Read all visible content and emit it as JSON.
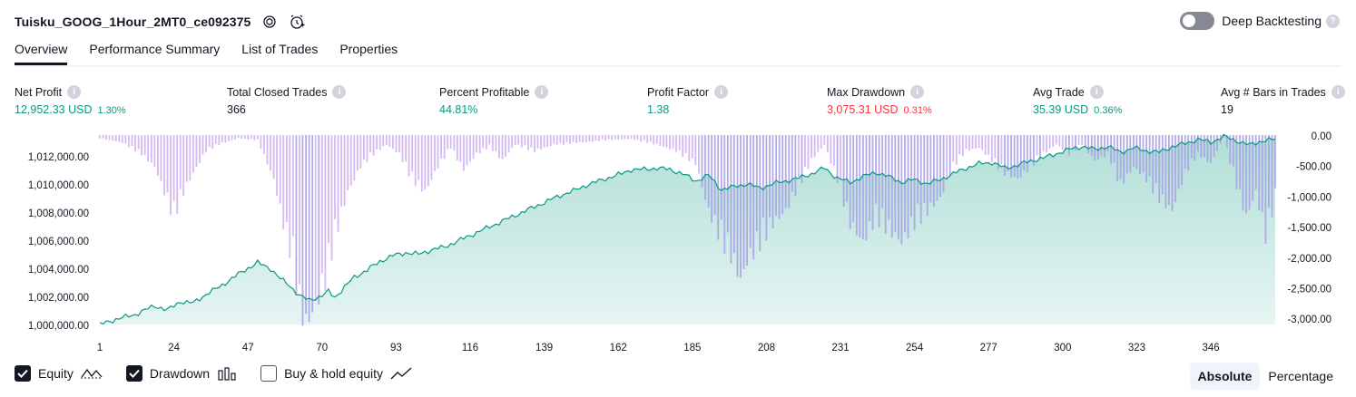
{
  "header": {
    "title": "Tuisku_GOOG_1Hour_2MT0_ce092375",
    "deep_backtesting_label": "Deep Backtesting",
    "help_glyph": "?"
  },
  "tabs": [
    {
      "label": "Overview",
      "active": true
    },
    {
      "label": "Performance Summary",
      "active": false
    },
    {
      "label": "List of Trades",
      "active": false
    },
    {
      "label": "Properties",
      "active": false
    }
  ],
  "stats": {
    "net_profit": {
      "label": "Net Profit",
      "value": "12,952.33 USD",
      "pct": "1.30%"
    },
    "total_closed_trades": {
      "label": "Total Closed Trades",
      "value": "366"
    },
    "percent_profitable": {
      "label": "Percent Profitable",
      "value": "44.81%"
    },
    "profit_factor": {
      "label": "Profit Factor",
      "value": "1.38"
    },
    "max_drawdown": {
      "label": "Max Drawdown",
      "value": "3,075.31 USD",
      "pct": "0.31%"
    },
    "avg_trade": {
      "label": "Avg Trade",
      "value": "35.39 USD",
      "pct": "0.36%"
    },
    "avg_bars": {
      "label": "Avg # Bars in Trades",
      "value": "19"
    }
  },
  "chart_data": {
    "type": "area",
    "equity_color": "#089981",
    "drawdown_color": "#c9a7ef",
    "left_axis": {
      "ticks": [
        "1,012,000.00",
        "1,010,000.00",
        "1,008,000.00",
        "1,006,000.00",
        "1,004,000.00",
        "1,002,000.00",
        "1,000,000.00"
      ],
      "range": [
        1000000,
        1013200
      ]
    },
    "right_axis": {
      "ticks": [
        "0.00",
        "-500.00",
        "-1,000.00",
        "-1,500.00",
        "-2,000.00",
        "-2,500.00",
        "-3,000.00"
      ],
      "range": [
        -3100,
        0
      ]
    },
    "x_ticks": [
      "1",
      "24",
      "47",
      "70",
      "93",
      "116",
      "139",
      "162",
      "185",
      "208",
      "231",
      "254",
      "277",
      "300",
      "323",
      "346"
    ],
    "trades": 366,
    "equity_points": [
      [
        1,
        1000000
      ],
      [
        5,
        1000300
      ],
      [
        12,
        1000700
      ],
      [
        18,
        1001300
      ],
      [
        22,
        1001000
      ],
      [
        26,
        1001600
      ],
      [
        30,
        1001500
      ],
      [
        34,
        1002100
      ],
      [
        38,
        1002600
      ],
      [
        42,
        1003200
      ],
      [
        46,
        1003800
      ],
      [
        50,
        1004300
      ],
      [
        54,
        1003900
      ],
      [
        57,
        1003200
      ],
      [
        60,
        1002700
      ],
      [
        63,
        1002000
      ],
      [
        66,
        1001700
      ],
      [
        70,
        1002000
      ],
      [
        72,
        1002300
      ],
      [
        74,
        1001900
      ],
      [
        77,
        1002600
      ],
      [
        80,
        1003300
      ],
      [
        84,
        1003800
      ],
      [
        88,
        1004400
      ],
      [
        92,
        1004800
      ],
      [
        96,
        1005000
      ],
      [
        100,
        1004900
      ],
      [
        104,
        1005200
      ],
      [
        108,
        1005400
      ],
      [
        112,
        1005800
      ],
      [
        116,
        1006200
      ],
      [
        120,
        1006600
      ],
      [
        124,
        1007000
      ],
      [
        128,
        1007400
      ],
      [
        132,
        1007800
      ],
      [
        136,
        1008200
      ],
      [
        140,
        1008600
      ],
      [
        144,
        1009000
      ],
      [
        148,
        1009300
      ],
      [
        152,
        1009700
      ],
      [
        156,
        1010000
      ],
      [
        160,
        1010300
      ],
      [
        163,
        1010500
      ],
      [
        166,
        1010800
      ],
      [
        170,
        1010800
      ],
      [
        174,
        1010900
      ],
      [
        178,
        1010800
      ],
      [
        182,
        1010500
      ],
      [
        186,
        1010000
      ],
      [
        190,
        1010400
      ],
      [
        194,
        1009400
      ],
      [
        198,
        1009600
      ],
      [
        202,
        1009800
      ],
      [
        206,
        1009500
      ],
      [
        210,
        1009800
      ],
      [
        214,
        1010000
      ],
      [
        218,
        1010200
      ],
      [
        222,
        1010500
      ],
      [
        226,
        1010900
      ],
      [
        230,
        1010200
      ],
      [
        234,
        1009900
      ],
      [
        238,
        1010300
      ],
      [
        242,
        1010600
      ],
      [
        246,
        1010300
      ],
      [
        250,
        1009900
      ],
      [
        254,
        1010100
      ],
      [
        258,
        1009800
      ],
      [
        262,
        1010100
      ],
      [
        266,
        1010500
      ],
      [
        270,
        1010900
      ],
      [
        274,
        1011200
      ],
      [
        278,
        1011300
      ],
      [
        282,
        1010900
      ],
      [
        286,
        1011100
      ],
      [
        290,
        1011400
      ],
      [
        294,
        1011600
      ],
      [
        298,
        1011900
      ],
      [
        302,
        1012200
      ],
      [
        306,
        1012400
      ],
      [
        310,
        1012200
      ],
      [
        314,
        1012400
      ],
      [
        318,
        1012000
      ],
      [
        322,
        1012300
      ],
      [
        326,
        1012100
      ],
      [
        330,
        1012000
      ],
      [
        334,
        1012400
      ],
      [
        338,
        1012600
      ],
      [
        342,
        1012900
      ],
      [
        346,
        1012700
      ],
      [
        350,
        1013100
      ],
      [
        354,
        1012800
      ],
      [
        358,
        1012500
      ],
      [
        362,
        1012800
      ],
      [
        366,
        1012900
      ]
    ],
    "drawdown_points": [
      [
        1,
        -50
      ],
      [
        8,
        -120
      ],
      [
        14,
        -300
      ],
      [
        18,
        -500
      ],
      [
        21,
        -900
      ],
      [
        24,
        -1300
      ],
      [
        26,
        -1000
      ],
      [
        30,
        -600
      ],
      [
        34,
        -250
      ],
      [
        38,
        -150
      ],
      [
        44,
        -50
      ],
      [
        50,
        -80
      ],
      [
        55,
        -700
      ],
      [
        58,
        -1400
      ],
      [
        61,
        -2000
      ],
      [
        63,
        -2700
      ],
      [
        65,
        -3000
      ],
      [
        68,
        -2700
      ],
      [
        71,
        -2300
      ],
      [
        74,
        -1600
      ],
      [
        78,
        -900
      ],
      [
        82,
        -500
      ],
      [
        86,
        -300
      ],
      [
        90,
        -150
      ],
      [
        94,
        -300
      ],
      [
        98,
        -700
      ],
      [
        102,
        -900
      ],
      [
        106,
        -500
      ],
      [
        110,
        -200
      ],
      [
        114,
        -550
      ],
      [
        118,
        -300
      ],
      [
        122,
        -180
      ],
      [
        126,
        -400
      ],
      [
        130,
        -150
      ],
      [
        136,
        -250
      ],
      [
        142,
        -150
      ],
      [
        150,
        -120
      ],
      [
        158,
        -80
      ],
      [
        166,
        -60
      ],
      [
        174,
        -150
      ],
      [
        180,
        -250
      ],
      [
        186,
        -450
      ],
      [
        190,
        -1200
      ],
      [
        194,
        -1650
      ],
      [
        197,
        -1900
      ],
      [
        200,
        -2300
      ],
      [
        202,
        -2000
      ],
      [
        206,
        -1700
      ],
      [
        210,
        -1400
      ],
      [
        214,
        -1200
      ],
      [
        218,
        -800
      ],
      [
        222,
        -400
      ],
      [
        226,
        -150
      ],
      [
        230,
        -700
      ],
      [
        234,
        -1400
      ],
      [
        238,
        -1700
      ],
      [
        242,
        -1300
      ],
      [
        246,
        -1500
      ],
      [
        250,
        -1700
      ],
      [
        254,
        -1400
      ],
      [
        258,
        -1200
      ],
      [
        262,
        -1000
      ],
      [
        266,
        -500
      ],
      [
        270,
        -250
      ],
      [
        274,
        -200
      ],
      [
        278,
        -400
      ],
      [
        282,
        -600
      ],
      [
        286,
        -700
      ],
      [
        290,
        -500
      ],
      [
        294,
        -300
      ],
      [
        298,
        -150
      ],
      [
        302,
        -300
      ],
      [
        306,
        -150
      ],
      [
        310,
        -400
      ],
      [
        314,
        -300
      ],
      [
        318,
        -800
      ],
      [
        322,
        -500
      ],
      [
        326,
        -700
      ],
      [
        330,
        -1000
      ],
      [
        334,
        -1200
      ],
      [
        338,
        -600
      ],
      [
        342,
        -300
      ],
      [
        346,
        -450
      ],
      [
        350,
        -40
      ],
      [
        354,
        -800
      ],
      [
        357,
        -1300
      ],
      [
        360,
        -900
      ],
      [
        363,
        -1600
      ],
      [
        366,
        -1000
      ]
    ]
  },
  "legend": {
    "equity_label": "Equity",
    "equity_checked": true,
    "drawdown_label": "Drawdown",
    "drawdown_checked": true,
    "buyhold_label": "Buy & hold equity",
    "buyhold_checked": false
  },
  "view_toggle": {
    "absolute_label": "Absolute",
    "percentage_label": "Percentage",
    "selected": "Absolute"
  }
}
